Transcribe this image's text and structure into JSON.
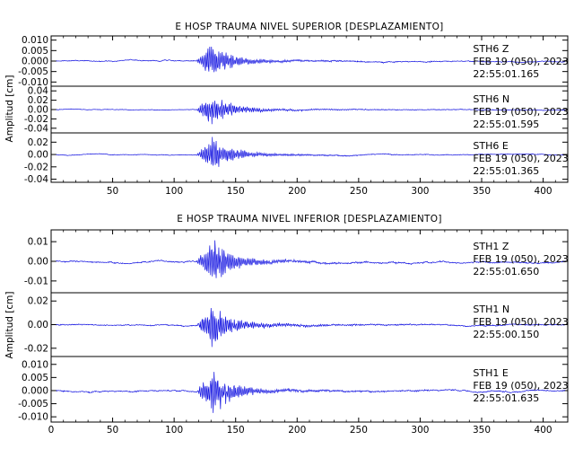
{
  "chart_data": [
    {
      "type": "line",
      "title": "E HOSP TRAUMA NIVEL SUPERIOR [DESPLAZAMIENTO]",
      "ylabel": "Amplitud [cm]",
      "xlim": [
        0,
        420
      ],
      "x_ticks": [
        "50",
        "100",
        "150",
        "200",
        "250",
        "300",
        "350",
        "400"
      ],
      "traces": [
        {
          "station": "STH6",
          "component": "Z",
          "date": "FEB 19 (050), 2023",
          "time": "22:55:01.165",
          "ylim": [
            -0.012,
            0.012
          ],
          "y_ticks": [
            "0.010",
            "0.005",
            "0.000",
            "-0.005",
            "-0.010"
          ],
          "amplitude": 0.011,
          "noise": 0.0007
        },
        {
          "station": "STH6",
          "component": "N",
          "date": "FEB 19 (050), 2023",
          "time": "22:55:01.595",
          "ylim": [
            -0.05,
            0.05
          ],
          "y_ticks": [
            "0.04",
            "0.02",
            "0.00",
            "-0.02",
            "-0.04"
          ],
          "amplitude": 0.045,
          "noise": 0.002
        },
        {
          "station": "STH6",
          "component": "E",
          "date": "FEB 19 (050), 2023",
          "time": "22:55:01.365",
          "ylim": [
            -0.045,
            0.035
          ],
          "y_ticks": [
            "0.02",
            "0.00",
            "-0.02",
            "-0.04"
          ],
          "amplitude": 0.035,
          "noise": 0.0015
        }
      ]
    },
    {
      "type": "line",
      "title": "E HOSP TRAUMA NIVEL INFERIOR [DESPLAZAMIENTO]",
      "ylabel": "Amplitud [cm]",
      "xlim": [
        0,
        420
      ],
      "x_ticks": [
        "0",
        "50",
        "100",
        "150",
        "200",
        "250",
        "300",
        "350",
        "400"
      ],
      "traces": [
        {
          "station": "STH1",
          "component": "Z",
          "date": "FEB 19 (050), 2023",
          "time": "22:55:01.650",
          "ylim": [
            -0.016,
            0.016
          ],
          "y_ticks": [
            "0.01",
            "0.00",
            "-0.01"
          ],
          "amplitude": 0.016,
          "noise": 0.001
        },
        {
          "station": "STH1",
          "component": "N",
          "date": "FEB 19 (050), 2023",
          "time": "22:55:00.150",
          "ylim": [
            -0.027,
            0.027
          ],
          "y_ticks": [
            "0.02",
            "0.00",
            "-0.02"
          ],
          "amplitude": 0.025,
          "noise": 0.0015
        },
        {
          "station": "STH1",
          "component": "E",
          "date": "FEB 19 (050), 2023",
          "time": "22:55:01.635",
          "ylim": [
            -0.012,
            0.013
          ],
          "y_ticks": [
            "0.010",
            "0.005",
            "0.000",
            "-0.005",
            "-0.010"
          ],
          "amplitude": 0.012,
          "noise": 0.0008
        }
      ]
    }
  ],
  "colors": {
    "trace": "#1010e0",
    "axes": "#000000",
    "background": "#ffffff"
  }
}
